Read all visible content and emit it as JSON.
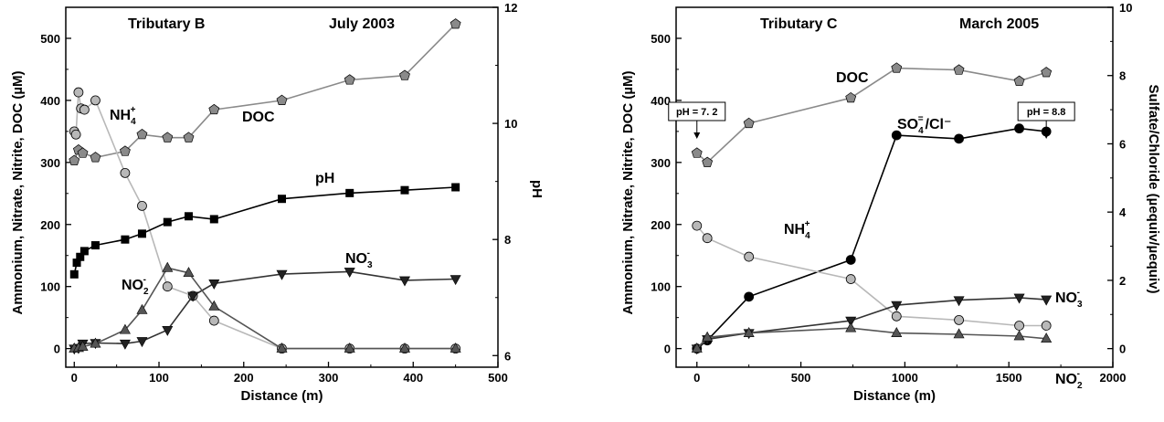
{
  "colors": {
    "light_gray": "#b8b8b8",
    "mid_gray": "#8a8a8a",
    "dark_gray": "#555555",
    "black": "#000000"
  },
  "chart_data": [
    {
      "type": "line",
      "header_left": "Tributary B",
      "header_right": "July 2003",
      "xlabel": "Distance (m)",
      "ylabel": "Ammonium, Nitrate, Nitrite, DOC (µM)",
      "y2label": "pH",
      "xlim": [
        -10,
        500
      ],
      "ylim": [
        -30,
        550
      ],
      "y2lim": [
        5.8,
        12
      ],
      "xticks": [
        0,
        100,
        200,
        300,
        400,
        500
      ],
      "yticks": [
        0,
        100,
        200,
        300,
        400,
        500
      ],
      "y2ticks": [
        6,
        8,
        10,
        12
      ],
      "series": [
        {
          "name": "DOC",
          "label_main": "DOC",
          "label_sub": "",
          "label_sup": "",
          "label_tail": "",
          "axis": "left",
          "marker": "pentagon",
          "color": "#8a8a8a",
          "line": "#8a8a8a",
          "x": [
            0,
            5,
            10,
            25,
            60,
            80,
            110,
            135,
            165,
            245,
            325,
            390,
            450
          ],
          "y": [
            303,
            320,
            315,
            308,
            318,
            345,
            340,
            340,
            385,
            400,
            433,
            440,
            523
          ]
        },
        {
          "name": "NH4+",
          "label_main": "NH",
          "label_sub": "4",
          "label_sup": "+",
          "label_tail": "",
          "axis": "left",
          "marker": "circle",
          "color": "#b8b8b8",
          "line": "#b8b8b8",
          "x": [
            0,
            2,
            5,
            8,
            12,
            25,
            60,
            80,
            110,
            140,
            165,
            245,
            325,
            390,
            450
          ],
          "y": [
            350,
            345,
            413,
            387,
            385,
            400,
            283,
            230,
            100,
            85,
            45,
            0,
            0,
            0,
            0
          ]
        },
        {
          "name": "pH",
          "label_main": "pH",
          "label_sub": "",
          "label_sup": "",
          "label_tail": "",
          "axis": "right",
          "marker": "square",
          "color": "#000000",
          "line": "#000000",
          "x": [
            0,
            3,
            7,
            12,
            25,
            60,
            80,
            110,
            135,
            165,
            245,
            325,
            390,
            450
          ],
          "y": [
            7.4,
            7.6,
            7.7,
            7.8,
            7.9,
            8.0,
            8.1,
            8.3,
            8.4,
            8.35,
            8.7,
            8.8,
            8.85,
            8.9
          ]
        },
        {
          "name": "NO3-",
          "label_main": "NO",
          "label_sub": "3",
          "label_sup": "-",
          "label_tail": "",
          "axis": "left",
          "marker": "triangle-down",
          "color": "#222222",
          "line": "#333333",
          "x": [
            0,
            5,
            10,
            25,
            60,
            80,
            110,
            140,
            165,
            245,
            325,
            390,
            450
          ],
          "y": [
            0,
            1,
            8,
            9,
            8,
            12,
            30,
            85,
            105,
            120,
            124,
            110,
            112
          ]
        },
        {
          "name": "NO2-",
          "label_main": "NO",
          "label_sub": "2",
          "label_sup": "-",
          "label_tail": "",
          "axis": "left",
          "marker": "triangle-up",
          "color": "#555555",
          "line": "#555555",
          "x": [
            0,
            5,
            10,
            25,
            60,
            80,
            110,
            135,
            165,
            245,
            325,
            390,
            450
          ],
          "y": [
            0,
            1,
            3,
            8,
            30,
            62,
            130,
            122,
            68,
            0,
            0,
            0,
            0
          ]
        }
      ]
    },
    {
      "type": "line",
      "header_left": "Tributary C",
      "header_right": "March 2005",
      "xlabel": "Distance (m)",
      "ylabel": "Ammonium, Nitrate, Nitrite, DOC (µM)",
      "y2label": "Sulfate/Chloride (µequiv/µequiv)",
      "xlim": [
        -100,
        2000
      ],
      "ylim": [
        -30,
        550
      ],
      "y2lim": [
        -0.545,
        10
      ],
      "xticks": [
        0,
        500,
        1000,
        1500,
        2000
      ],
      "yticks": [
        0,
        100,
        200,
        300,
        400,
        500
      ],
      "y2ticks": [
        0,
        2,
        4,
        6,
        8,
        10
      ],
      "annotations": [
        {
          "text": "pH = 7. 2",
          "x": 0
        },
        {
          "text": "pH = 8.8",
          "x": 1680
        }
      ],
      "series": [
        {
          "name": "DOC",
          "label_main": "DOC",
          "label_sub": "",
          "label_sup": "",
          "label_tail": "",
          "axis": "left",
          "marker": "pentagon",
          "color": "#8a8a8a",
          "line": "#8a8a8a",
          "x": [
            0,
            50,
            250,
            740,
            960,
            1260,
            1550,
            1680
          ],
          "y": [
            315,
            300,
            363,
            404,
            452,
            449,
            431,
            445
          ]
        },
        {
          "name": "SO4=/Cl-",
          "label_main": "SO",
          "label_sub": "4",
          "label_sup": "=",
          "label_tail": "/Cl⁻",
          "axis": "right",
          "marker": "circle",
          "color": "#000000",
          "line": "#000000",
          "x": [
            0,
            50,
            250,
            740,
            960,
            1260,
            1550,
            1680
          ],
          "y": [
            0,
            0.24,
            1.52,
            2.6,
            6.25,
            6.15,
            6.45,
            6.36
          ]
        },
        {
          "name": "NH4+",
          "label_main": "NH",
          "label_sub": "4",
          "label_sup": "+",
          "label_tail": "",
          "axis": "left",
          "marker": "circle",
          "color": "#b8b8b8",
          "line": "#b8b8b8",
          "x": [
            0,
            50,
            250,
            740,
            960,
            1260,
            1550,
            1680
          ],
          "y": [
            198,
            178,
            148,
            112,
            52,
            46,
            37,
            37
          ]
        },
        {
          "name": "NO3-",
          "label_main": "NO",
          "label_sub": "3",
          "label_sup": "-",
          "label_tail": "",
          "axis": "left",
          "marker": "triangle-down",
          "color": "#222222",
          "line": "#333333",
          "x": [
            0,
            50,
            250,
            740,
            960,
            1260,
            1550,
            1680
          ],
          "y": [
            0,
            15,
            25,
            45,
            70,
            78,
            82,
            79
          ]
        },
        {
          "name": "NO2-",
          "label_main": "NO",
          "label_sub": "2",
          "label_sup": "-",
          "label_tail": "",
          "axis": "left",
          "marker": "triangle-up",
          "color": "#555555",
          "line": "#555555",
          "x": [
            0,
            50,
            250,
            740,
            960,
            1260,
            1550,
            1680
          ],
          "y": [
            0,
            18,
            25,
            33,
            25,
            23,
            20,
            16
          ]
        }
      ]
    }
  ]
}
